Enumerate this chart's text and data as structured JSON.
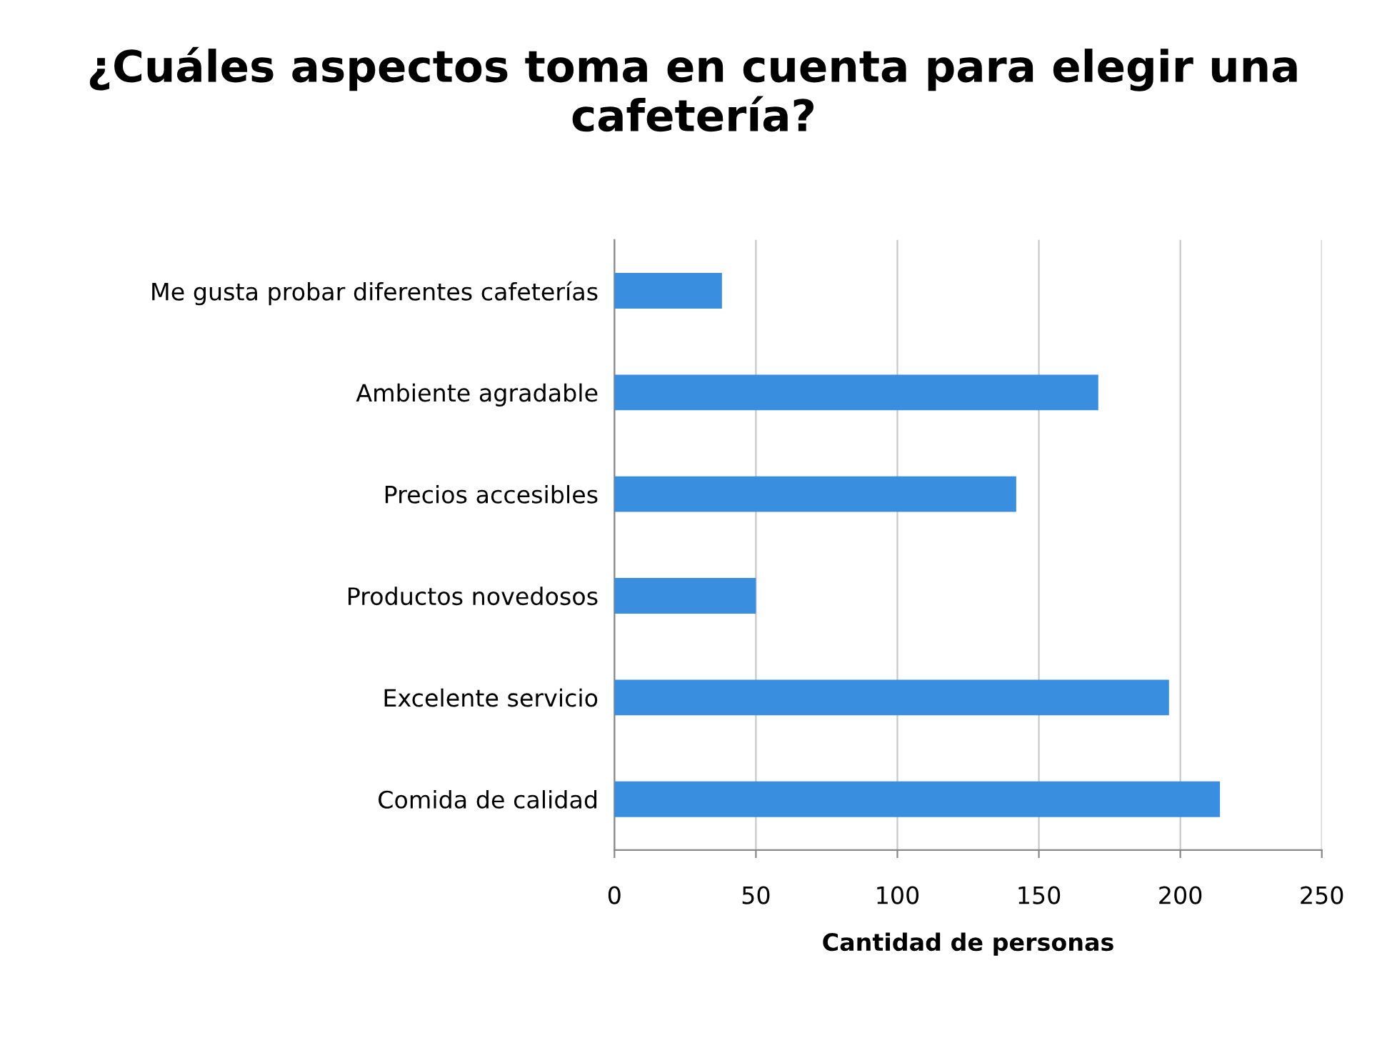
{
  "chart_data": {
    "type": "bar",
    "orientation": "horizontal",
    "title": "¿Cuáles aspectos toma en cuenta para elegir una cafetería?",
    "xlabel": "Cantidad de personas",
    "categories": [
      "Me gusta probar diferentes cafeterías",
      "Ambiente agradable",
      "Precios accesibles",
      "Productos novedosos",
      "Excelente servicio",
      "Comida de calidad"
    ],
    "values": [
      38,
      171,
      142,
      50,
      196,
      214
    ],
    "color": "#3a8ee0",
    "xlim": [
      0,
      250
    ],
    "xticks": [
      0,
      50,
      100,
      150,
      200,
      250
    ],
    "grid": "x",
    "legend": false
  }
}
